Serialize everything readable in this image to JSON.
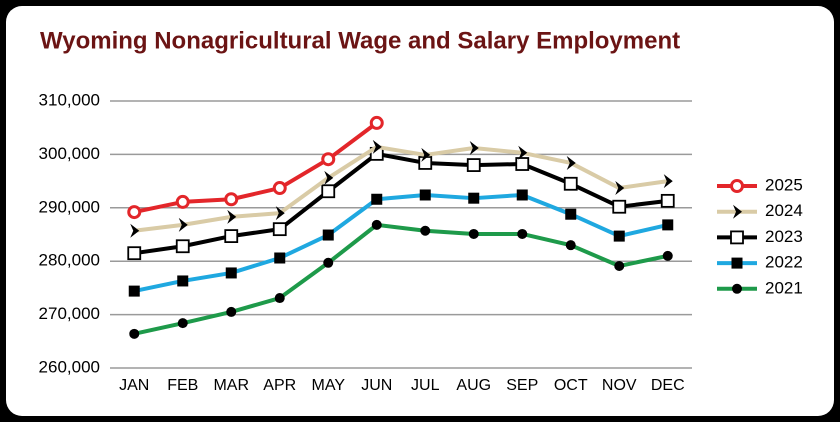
{
  "chart_data": {
    "type": "line",
    "title": "Wyoming Nonagricultural Wage and Salary Employment",
    "categories": [
      "JAN",
      "FEB",
      "MAR",
      "APR",
      "MAY",
      "JUN",
      "JUL",
      "AUG",
      "SEP",
      "OCT",
      "NOV",
      "DEC"
    ],
    "ylim": [
      260000,
      310000
    ],
    "yticks": [
      {
        "value": 260000,
        "label": "260,000"
      },
      {
        "value": 270000,
        "label": "270,000"
      },
      {
        "value": 280000,
        "label": "280,000"
      },
      {
        "value": 290000,
        "label": "290,000"
      },
      {
        "value": 300000,
        "label": "300,000"
      },
      {
        "value": 310000,
        "label": "310,000"
      }
    ],
    "grid": true,
    "legend": "right",
    "series": [
      {
        "name": "2025",
        "color": "#e3262a",
        "marker": "open-circle",
        "values": [
          289200,
          291100,
          291600,
          293700,
          299100,
          305900,
          null,
          null,
          null,
          null,
          null,
          null
        ]
      },
      {
        "name": "2024",
        "color": "#d9cba6",
        "marker": "chevron",
        "values": [
          285700,
          286800,
          288300,
          289000,
          295600,
          301400,
          299900,
          301200,
          300300,
          298400,
          293700,
          295000
        ]
      },
      {
        "name": "2023",
        "color": "#000000",
        "marker": "open-square",
        "values": [
          281500,
          282800,
          284700,
          286000,
          293100,
          300100,
          298400,
          298000,
          298200,
          294500,
          290200,
          291300
        ]
      },
      {
        "name": "2022",
        "color": "#1fa8e0",
        "marker": "square",
        "values": [
          274400,
          276300,
          277800,
          280600,
          284900,
          291600,
          292400,
          291800,
          292400,
          288800,
          284700,
          286800
        ]
      },
      {
        "name": "2021",
        "color": "#1e9a4a",
        "marker": "circle",
        "values": [
          266400,
          268400,
          270500,
          273100,
          279700,
          286800,
          285700,
          285100,
          285100,
          283000,
          279100,
          281000
        ]
      }
    ]
  }
}
